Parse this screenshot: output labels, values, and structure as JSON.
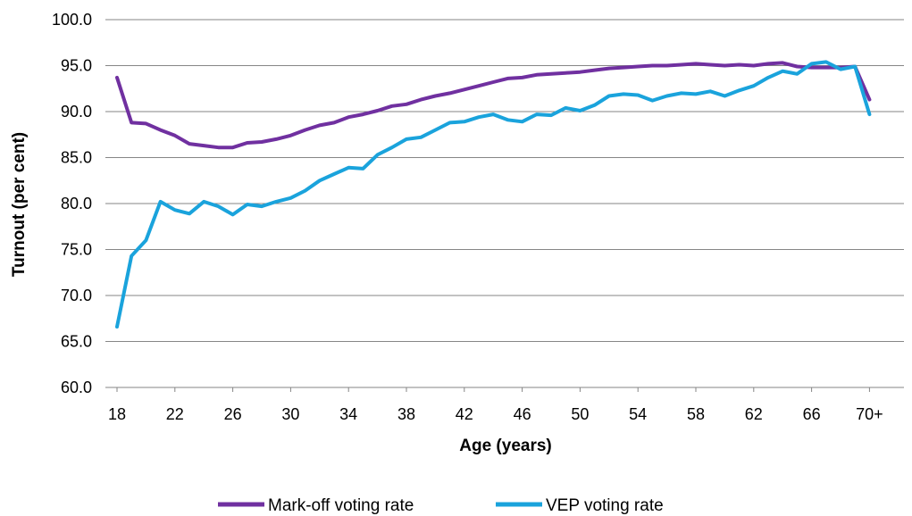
{
  "chart_data": {
    "type": "line",
    "xlabel": "Age (years)",
    "ylabel": "Turnout (per cent)",
    "ylim": [
      60,
      100
    ],
    "yticks": [
      "60.0",
      "65.0",
      "70.0",
      "75.0",
      "80.0",
      "85.0",
      "90.0",
      "95.0",
      "100.0"
    ],
    "xtick_labels": [
      "18",
      "22",
      "26",
      "30",
      "34",
      "38",
      "42",
      "46",
      "50",
      "54",
      "58",
      "62",
      "66",
      "70+"
    ],
    "x": [
      "18",
      "19",
      "20",
      "21",
      "22",
      "23",
      "24",
      "25",
      "26",
      "27",
      "28",
      "29",
      "30",
      "31",
      "32",
      "33",
      "34",
      "35",
      "36",
      "37",
      "38",
      "39",
      "40",
      "41",
      "42",
      "43",
      "44",
      "45",
      "46",
      "47",
      "48",
      "49",
      "50",
      "51",
      "52",
      "53",
      "54",
      "55",
      "56",
      "57",
      "58",
      "59",
      "60",
      "61",
      "62",
      "63",
      "64",
      "65",
      "66",
      "67",
      "68",
      "69",
      "70+"
    ],
    "grid": "horizontal",
    "legend": "bottom",
    "series": [
      {
        "name": "Mark-off voting rate",
        "color": "#7030A0",
        "values": [
          93.7,
          88.8,
          88.7,
          88.0,
          87.4,
          86.5,
          86.3,
          86.1,
          86.1,
          86.6,
          86.7,
          87.0,
          87.4,
          88.0,
          88.5,
          88.8,
          89.4,
          89.7,
          90.1,
          90.6,
          90.8,
          91.3,
          91.7,
          92.0,
          92.4,
          92.8,
          93.2,
          93.6,
          93.7,
          94.0,
          94.1,
          94.2,
          94.3,
          94.5,
          94.7,
          94.8,
          94.9,
          95.0,
          95.0,
          95.1,
          95.2,
          95.1,
          95.0,
          95.1,
          95.0,
          95.2,
          95.3,
          94.9,
          94.8,
          94.8,
          94.8,
          94.9,
          91.3
        ]
      },
      {
        "name": "VEP voting rate",
        "color": "#1AA3DC",
        "values": [
          66.6,
          74.3,
          76.0,
          80.2,
          79.3,
          78.9,
          80.2,
          79.7,
          78.8,
          79.9,
          79.7,
          80.2,
          80.6,
          81.4,
          82.5,
          83.2,
          83.9,
          83.8,
          85.3,
          86.1,
          87.0,
          87.2,
          88.0,
          88.8,
          88.9,
          89.4,
          89.7,
          89.1,
          88.9,
          89.7,
          89.6,
          90.4,
          90.1,
          90.7,
          91.7,
          91.9,
          91.8,
          91.2,
          91.7,
          92.0,
          91.9,
          92.2,
          91.7,
          92.3,
          92.8,
          93.7,
          94.4,
          94.1,
          95.2,
          95.4,
          94.6,
          94.9,
          89.7
        ]
      }
    ]
  }
}
